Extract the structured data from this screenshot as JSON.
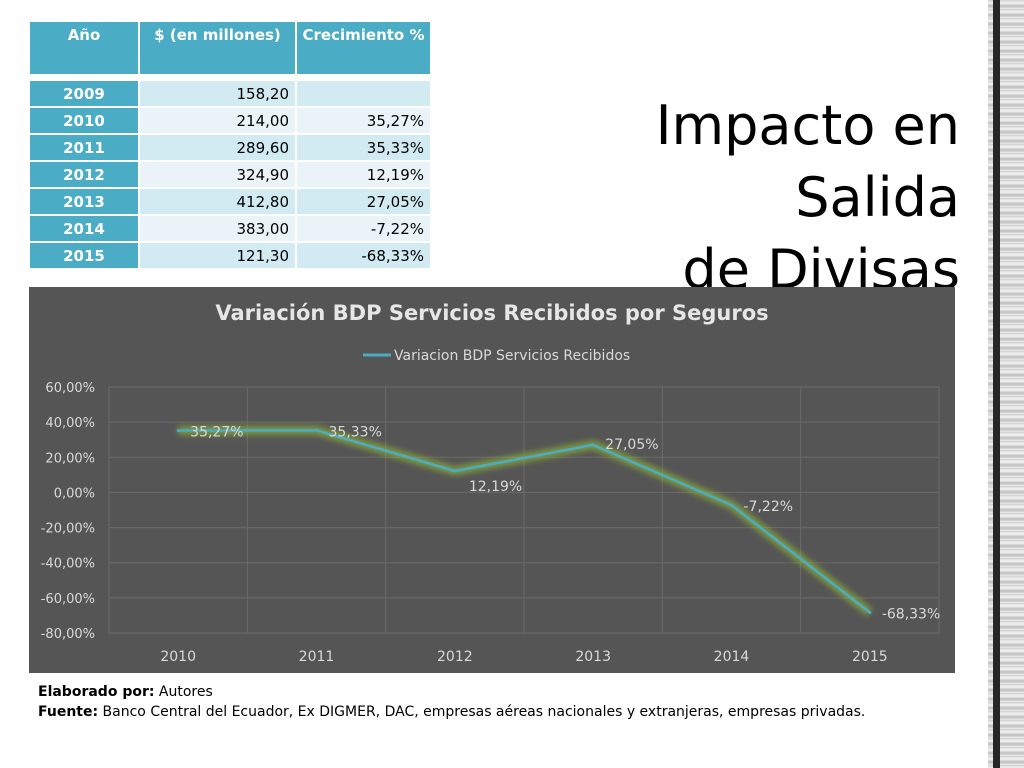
{
  "slide": {
    "title_line1": "Impacto en Salida",
    "title_line2": "de Divisas"
  },
  "table": {
    "headers": [
      "Año",
      "$ (en millones)",
      "Crecimiento %"
    ],
    "rows": [
      {
        "year": "2009",
        "amount": "158,20",
        "growth": ""
      },
      {
        "year": "2010",
        "amount": "214,00",
        "growth": "35,27%"
      },
      {
        "year": "2011",
        "amount": "289,60",
        "growth": "35,33%"
      },
      {
        "year": "2012",
        "amount": "324,90",
        "growth": "12,19%"
      },
      {
        "year": "2013",
        "amount": "412,80",
        "growth": "27,05%"
      },
      {
        "year": "2014",
        "amount": "383,00",
        "growth": "-7,22%"
      },
      {
        "year": "2015",
        "amount": "121,30",
        "growth": "-68,33%"
      }
    ]
  },
  "chart_data": {
    "type": "line",
    "title": "Variación BDP Servicios Recibidos por Seguros",
    "categories": [
      "2010",
      "2011",
      "2012",
      "2013",
      "2014",
      "2015"
    ],
    "series": [
      {
        "name": "Variacion BDP Servicios Recibidos",
        "values": [
          35.27,
          35.33,
          12.19,
          27.05,
          -7.22,
          -68.33
        ],
        "labels": [
          "35,27%",
          "35,33%",
          "12,19%",
          "27,05%",
          "-7,22%",
          "-68,33%"
        ],
        "color": "#4bacc6"
      }
    ],
    "ylim": [
      -80,
      60
    ],
    "yticks": [
      "-80,00%",
      "-60,00%",
      "-40,00%",
      "-20,00%",
      "0,00%",
      "20,00%",
      "40,00%",
      "60,00%"
    ],
    "ytick_values": [
      -80,
      -60,
      -40,
      -20,
      0,
      20,
      40,
      60
    ],
    "grid": true,
    "legend_position": "top",
    "background_color": "#555555",
    "glow_color": "#9acd32"
  },
  "footer": {
    "author_label": "Elaborado por:",
    "author_value": " Autores",
    "source_label": "Fuente:",
    "source_value": " Banco Central del Ecuador, Ex DIGMER, DAC, empresas aéreas nacionales y extranjeras, empresas privadas."
  }
}
